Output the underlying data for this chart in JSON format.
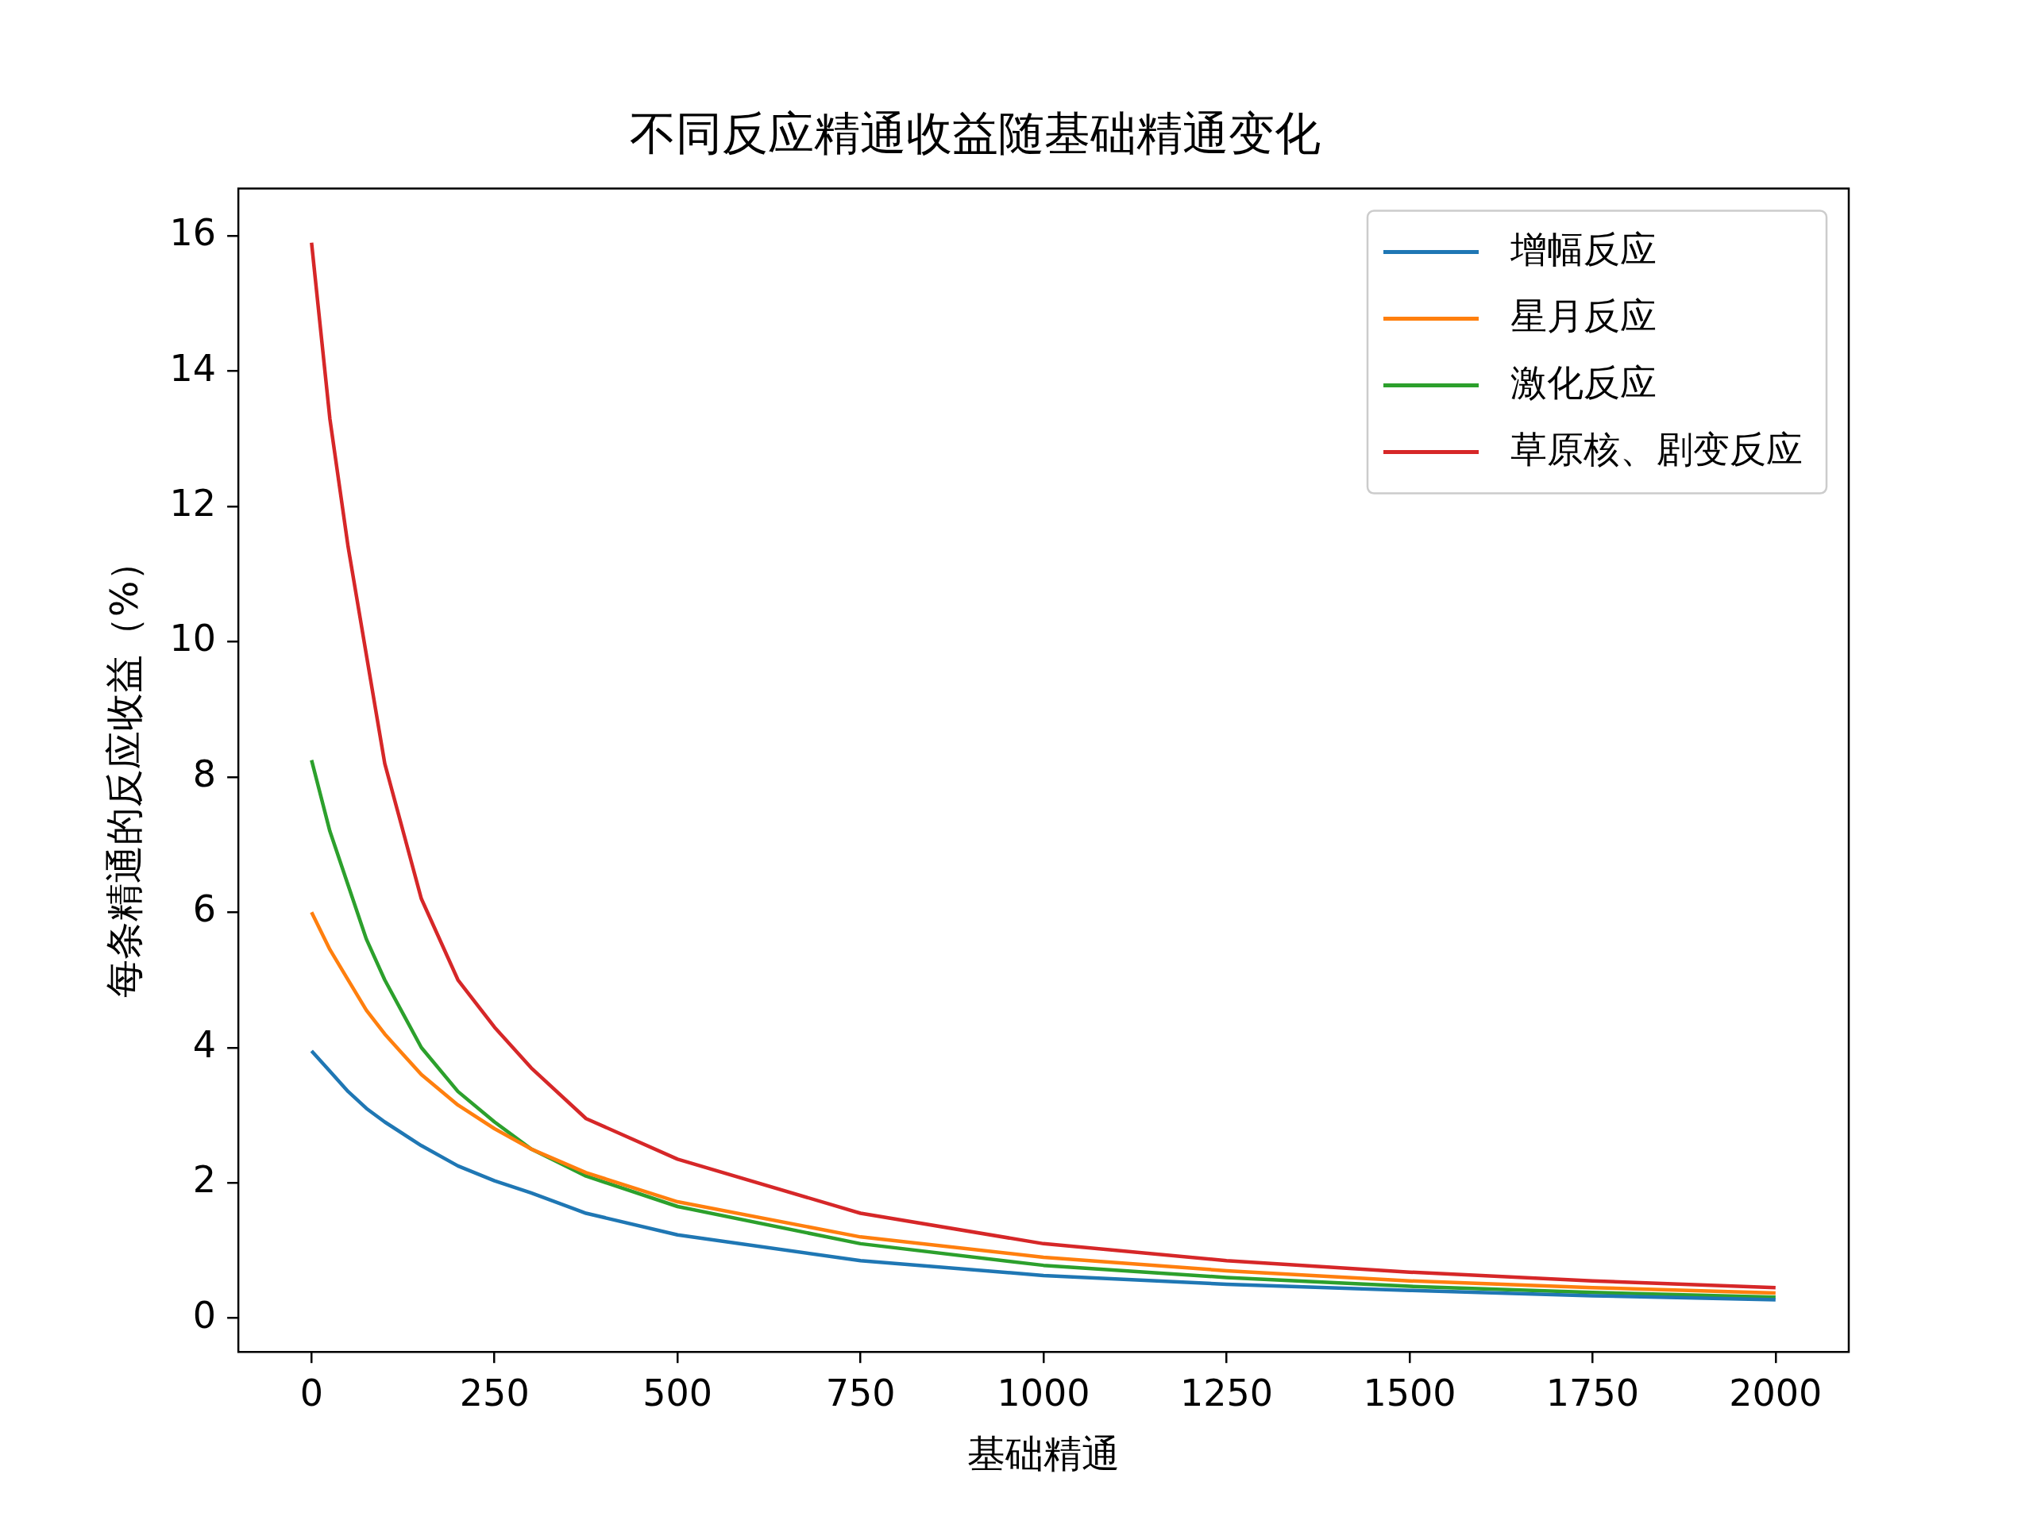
{
  "chart_data": {
    "type": "line",
    "title": "不同反应精通收益随基础精通变化",
    "xlabel": "基础精通",
    "ylabel": "每条精通的反应收益（%）",
    "x": [
      0,
      25,
      50,
      75,
      100,
      150,
      200,
      250,
      300,
      375,
      500,
      750,
      1000,
      1250,
      1500,
      1750,
      2000
    ],
    "series": [
      {
        "name": "增幅反应",
        "color": "#1f77b4",
        "values": [
          3.95,
          3.65,
          3.35,
          3.1,
          2.9,
          2.55,
          2.25,
          2.03,
          1.85,
          1.55,
          1.23,
          0.85,
          0.63,
          0.5,
          0.41,
          0.33,
          0.27
        ]
      },
      {
        "name": "星月反应",
        "color": "#ff7f0e",
        "values": [
          6.0,
          5.45,
          5.0,
          4.55,
          4.2,
          3.6,
          3.15,
          2.8,
          2.5,
          2.15,
          1.72,
          1.2,
          0.9,
          0.7,
          0.55,
          0.45,
          0.37
        ]
      },
      {
        "name": "激化反应",
        "color": "#2ca02c",
        "values": [
          8.25,
          7.2,
          6.4,
          5.6,
          5.0,
          4.0,
          3.35,
          2.9,
          2.5,
          2.1,
          1.65,
          1.1,
          0.78,
          0.6,
          0.47,
          0.38,
          0.31
        ]
      },
      {
        "name": "草原核、剧变反应",
        "color": "#d62728",
        "values": [
          15.9,
          13.3,
          11.4,
          9.8,
          8.2,
          6.2,
          5.0,
          4.3,
          3.7,
          2.95,
          2.35,
          1.55,
          1.1,
          0.85,
          0.68,
          0.55,
          0.45
        ]
      }
    ],
    "xlim": [
      -100,
      2100
    ],
    "xticks": [
      0,
      250,
      500,
      750,
      1000,
      1250,
      1500,
      1750,
      2000
    ],
    "ylim": [
      -0.5,
      16.7
    ],
    "yticks": [
      0,
      2,
      4,
      6,
      8,
      10,
      12,
      14,
      16
    ],
    "grid": false,
    "legend": "top right",
    "marker": "none",
    "line_style": "solid"
  }
}
